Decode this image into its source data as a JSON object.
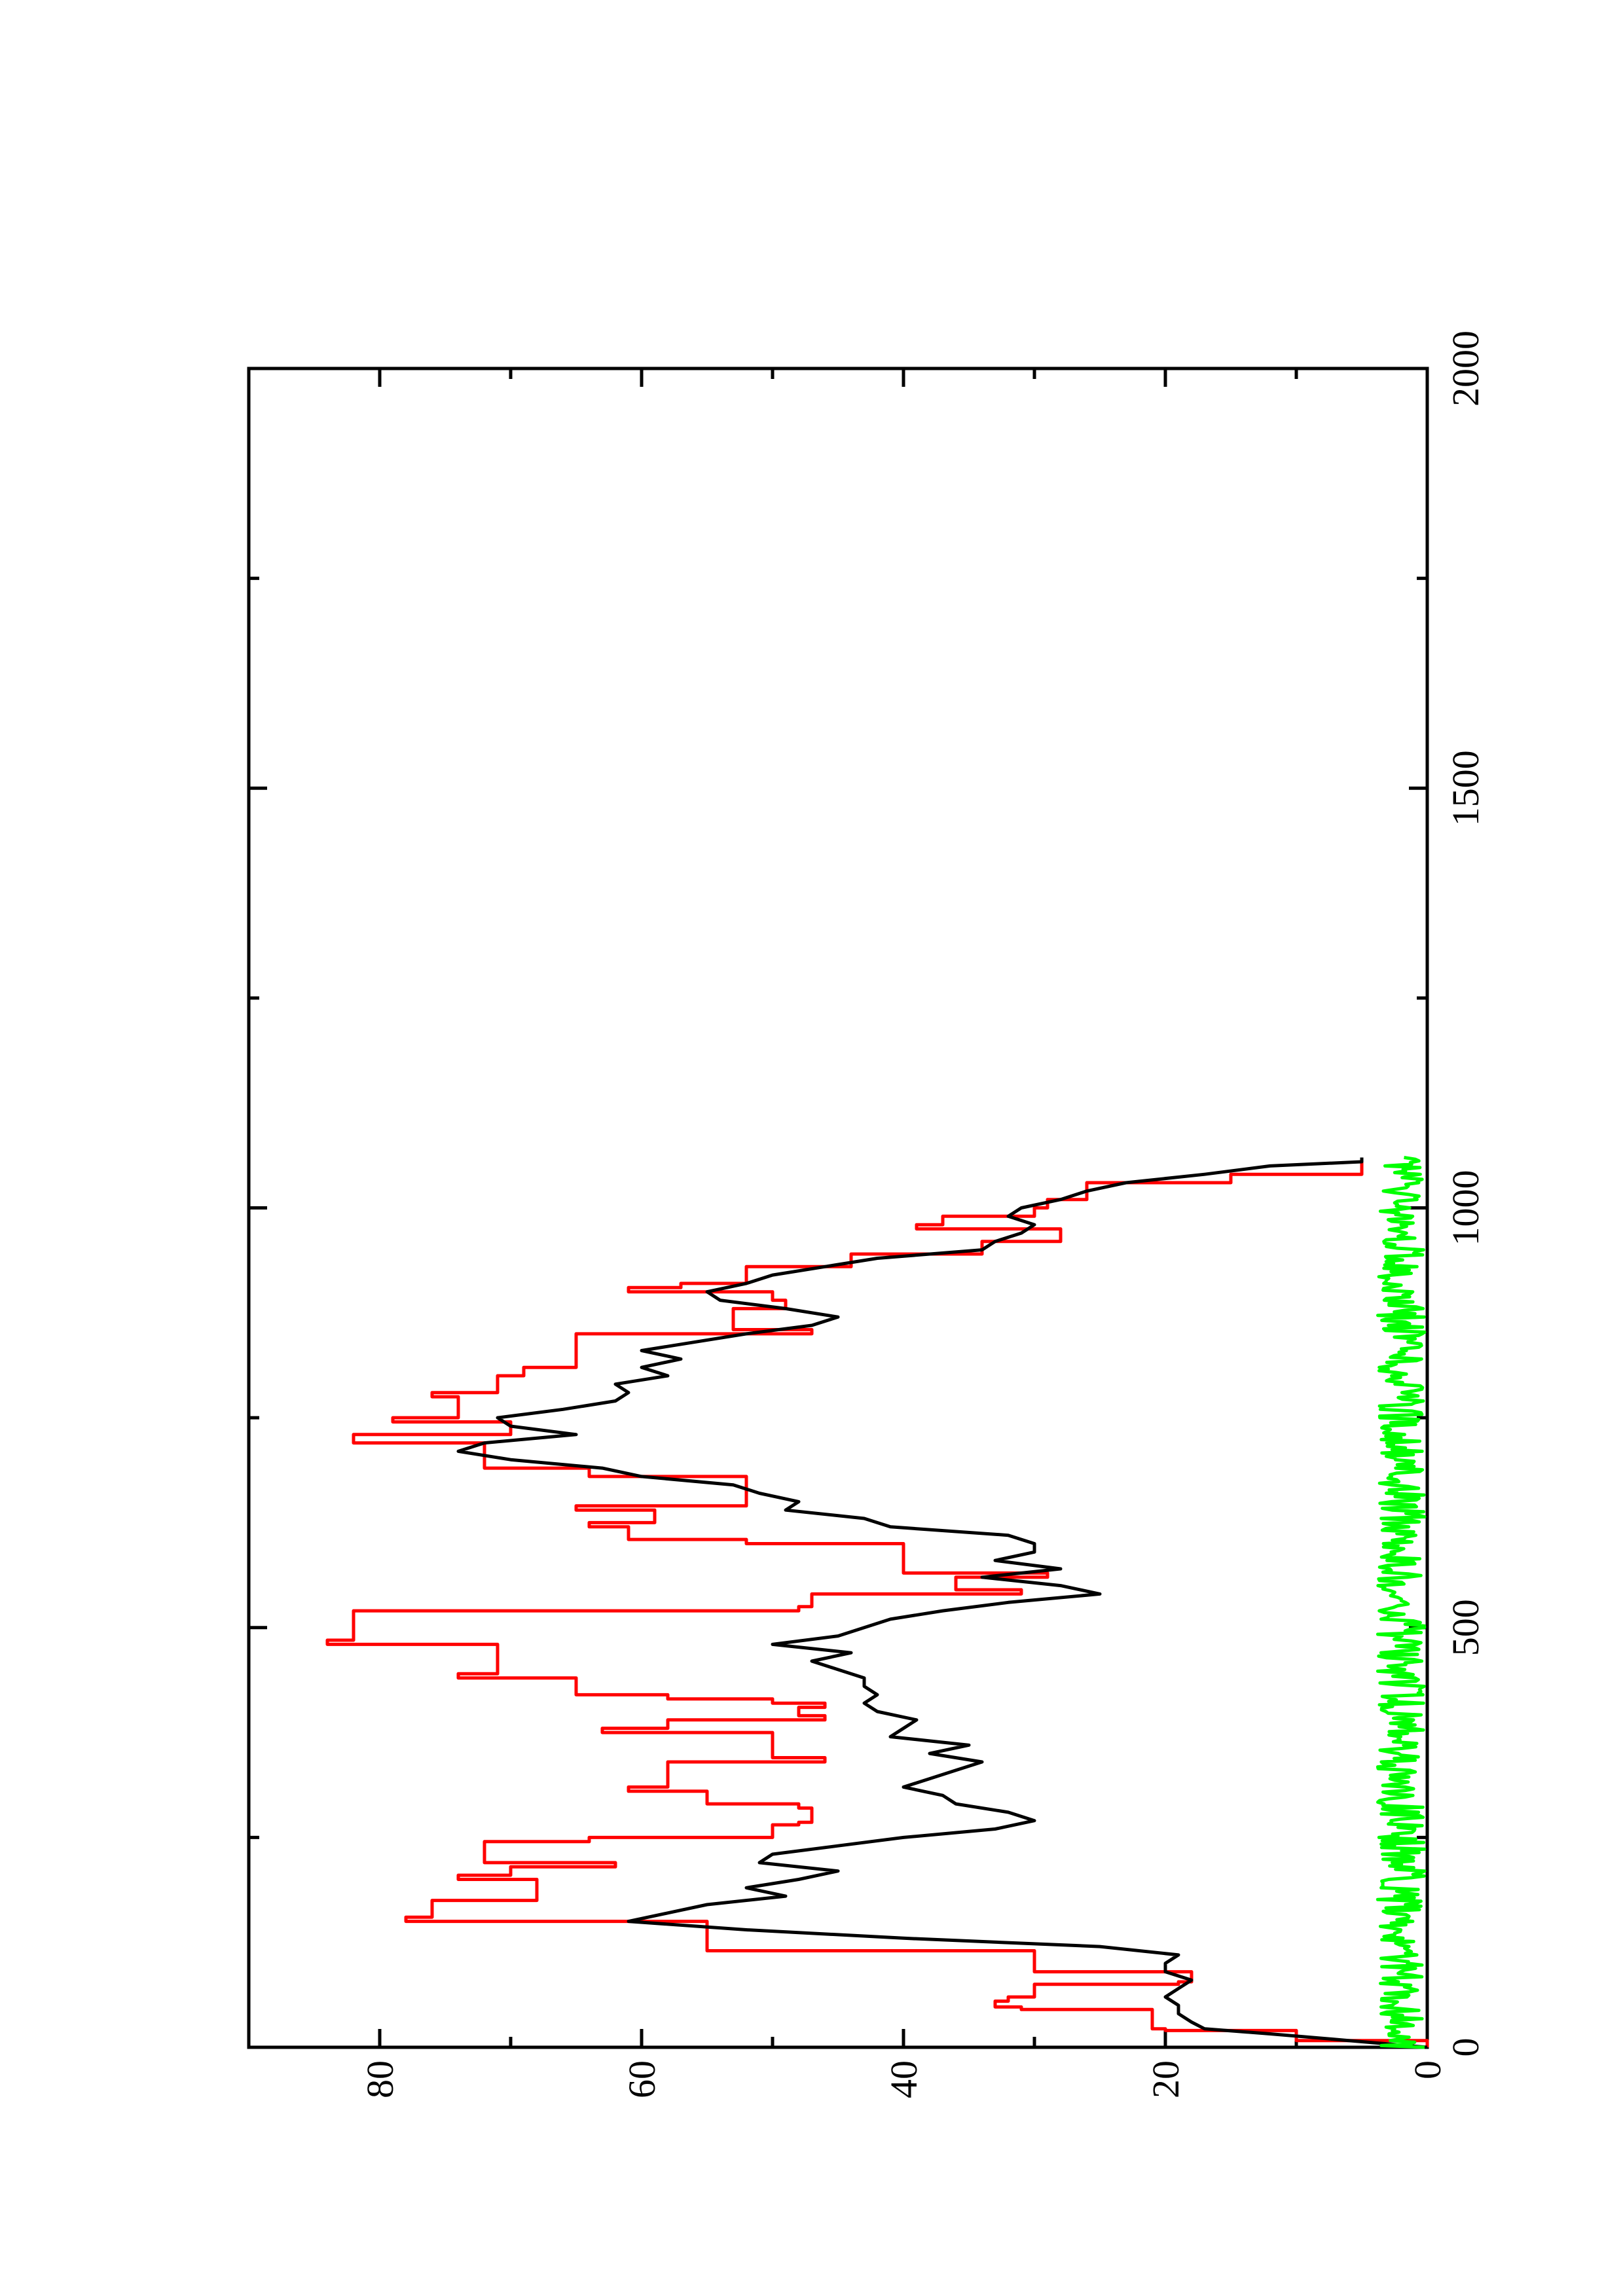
{
  "chart_data": {
    "type": "line",
    "title": "",
    "xlabel": "",
    "ylabel": "",
    "orientation": "rotated-90-ccw",
    "xlim": [
      0,
      2000
    ],
    "ylim": [
      0,
      90
    ],
    "x_ticks_major": [
      0,
      500,
      1000,
      1500,
      2000
    ],
    "x_ticks_minor": [
      250,
      750,
      1250,
      1750
    ],
    "y_ticks_major": [
      0,
      20,
      40,
      60,
      80
    ],
    "y_ticks_minor": [
      10,
      30,
      50,
      70
    ],
    "x_tick_labels": [
      "0",
      "500",
      "1000",
      "1500",
      "2000"
    ],
    "y_tick_labels": [
      "0",
      "20",
      "40",
      "60",
      "80"
    ],
    "grid": false,
    "legend": "none",
    "colors": {
      "series_black": "#000000",
      "series_red": "#ff0000",
      "series_green": "#00ff00",
      "axes": "#000000"
    },
    "series": [
      {
        "color": "#ff0000",
        "style": "step",
        "x": [
          0,
          8,
          20,
          22,
          45,
          48,
          55,
          60,
          75,
          78,
          90,
          115,
          150,
          155,
          175,
          180,
          200,
          205,
          215,
          220,
          245,
          250,
          265,
          268,
          285,
          290,
          305,
          310,
          340,
          345,
          375,
          380,
          390,
          395,
          405,
          410,
          415,
          420,
          440,
          445,
          480,
          485,
          520,
          525,
          540,
          545,
          560,
          565,
          600,
          605,
          620,
          625,
          640,
          645,
          680,
          690,
          720,
          730,
          745,
          750,
          775,
          780,
          800,
          810,
          850,
          855,
          875,
          880,
          890,
          900,
          905,
          910,
          930,
          945,
          960,
          975,
          980,
          990,
          1000,
          1010,
          1030,
          1040,
          1045,
          1060
        ],
        "y": [
          0,
          10,
          20,
          21,
          31,
          33,
          32,
          30,
          19,
          18,
          30,
          55,
          78,
          76,
          68,
          68,
          74,
          70,
          62,
          72,
          64,
          50,
          48,
          47,
          48,
          55,
          61,
          58,
          46,
          50,
          63,
          58,
          46,
          48,
          46,
          50,
          58,
          65,
          74,
          71,
          84,
          82,
          48,
          47,
          31,
          36,
          29,
          40,
          52,
          61,
          64,
          59,
          65,
          52,
          64,
          72,
          82,
          70,
          79,
          74,
          76,
          71,
          69,
          65,
          47,
          53,
          53,
          49,
          50,
          61,
          57,
          52,
          44,
          34,
          28,
          39,
          37,
          30,
          29,
          26,
          15,
          5,
          5,
          5
        ]
      },
      {
        "color": "#000000",
        "style": "line",
        "x": [
          0,
          8,
          16,
          22,
          30,
          40,
          50,
          60,
          70,
          80,
          90,
          100,
          110,
          120,
          130,
          140,
          150,
          160,
          170,
          180,
          190,
          200,
          210,
          220,
          230,
          240,
          250,
          260,
          270,
          280,
          290,
          300,
          310,
          320,
          330,
          340,
          350,
          360,
          370,
          380,
          390,
          400,
          410,
          420,
          430,
          440,
          450,
          460,
          470,
          480,
          490,
          500,
          510,
          520,
          530,
          540,
          550,
          560,
          570,
          580,
          590,
          600,
          610,
          620,
          630,
          640,
          650,
          660,
          670,
          680,
          690,
          700,
          710,
          720,
          730,
          740,
          750,
          760,
          770,
          780,
          790,
          800,
          810,
          820,
          830,
          840,
          850,
          860,
          870,
          880,
          890,
          900,
          910,
          920,
          930,
          940,
          950,
          960,
          970,
          980,
          990,
          1000,
          1010,
          1020,
          1030,
          1040,
          1050,
          1055,
          1060
        ],
        "y": [
          0,
          6,
          12,
          17,
          18,
          19,
          19,
          20,
          19,
          18,
          20,
          20,
          19,
          25,
          40,
          52,
          61,
          58,
          55,
          49,
          52,
          48,
          45,
          51,
          50,
          45,
          40,
          33,
          30,
          32,
          36,
          37,
          40,
          38,
          36,
          34,
          38,
          35,
          41,
          40,
          39,
          42,
          43,
          42,
          43,
          43,
          45,
          47,
          44,
          50,
          45,
          43,
          41,
          37,
          32,
          25,
          28,
          34,
          28,
          33,
          30,
          30,
          32,
          41,
          43,
          49,
          48,
          51,
          53,
          60,
          63,
          70,
          74,
          72,
          65,
          70,
          71,
          66,
          62,
          61,
          62,
          58,
          60,
          57,
          60,
          56,
          52,
          47,
          45,
          49,
          54,
          55,
          52,
          50,
          46,
          42,
          34,
          33,
          31,
          30,
          32,
          31,
          28,
          26,
          23,
          17,
          12,
          5,
          5
        ]
      },
      {
        "color": "#00ff00",
        "style": "line",
        "x": [
          0,
          1060
        ],
        "y": [
          0,
          0
        ],
        "noise_amplitude": 3,
        "baseline": 2
      }
    ]
  }
}
